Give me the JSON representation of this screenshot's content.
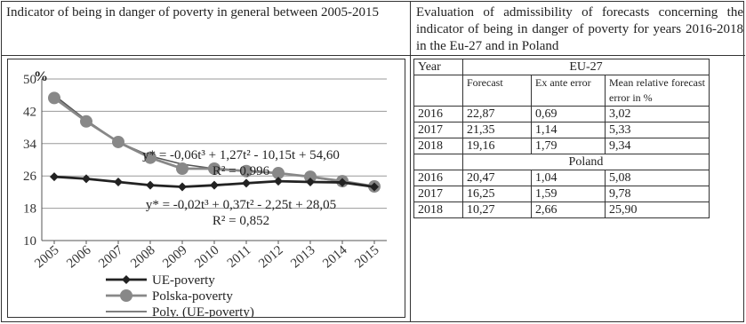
{
  "left_title": "Indicator of being in danger of poverty in general between 2005-2015",
  "right_title": "Evaluation of admissibility of forecasts concerning the indicator of being in danger of poverty for years 2016-2018 in the Eu-27 and in Poland",
  "chart_data": {
    "type": "line",
    "x": [
      "2005",
      "2006",
      "2007",
      "2008",
      "2009",
      "2010",
      "2011",
      "2012",
      "2013",
      "2014",
      "2015"
    ],
    "ylabel": "%",
    "ylim": [
      10,
      50
    ],
    "yticks": [
      "10",
      "18",
      "26",
      "34",
      "42",
      "50"
    ],
    "grid": true,
    "legend_position": "bottom",
    "series": [
      {
        "name": "UE-poverty",
        "color": "#222222",
        "marker": "diamond",
        "values": [
          25.8,
          25.3,
          24.5,
          23.7,
          23.3,
          23.7,
          24.2,
          24.7,
          24.5,
          24.4,
          23.3
        ]
      },
      {
        "name": "Polska-poverty",
        "color": "#888888",
        "marker": "circle",
        "values": [
          45.3,
          39.5,
          34.4,
          30.5,
          27.8,
          27.8,
          27.2,
          26.7,
          25.8,
          24.7,
          23.4
        ]
      },
      {
        "name": "Poly. (UE-poverty)",
        "color": "#555555",
        "marker": "none",
        "values": [
          46.0,
          39.8,
          34.4,
          30.9,
          28.9,
          27.8,
          27.2,
          26.7,
          25.7,
          24.6,
          23.2
        ]
      }
    ],
    "annotations": [
      {
        "text": "y* = -0,06t³ + 1,27t² - 10,15t + 54,60"
      },
      {
        "text": "R² = 0,996"
      },
      {
        "text": "y* = -0,02t³ + 0,37t² - 2,25t + 28,05"
      },
      {
        "text": "R² = 0,852"
      }
    ]
  },
  "table": {
    "year_header": "Year",
    "eu_header": "EU-27",
    "col_forecast": "Forecast",
    "col_ex_ante": "Ex ante error",
    "col_mean_rel": "Mean relative forecast error in %",
    "poland_header": "Poland",
    "eu_rows": [
      [
        "2016",
        "22,87",
        "0,69",
        "3,02"
      ],
      [
        "2017",
        "21,35",
        "1,14",
        "5,33"
      ],
      [
        "2018",
        "19,16",
        "1,79",
        "9,34"
      ]
    ],
    "poland_rows": [
      [
        "2016",
        "20,47",
        "1,04",
        "5,08"
      ],
      [
        "2017",
        "16,25",
        "1,59",
        "9,78"
      ],
      [
        "2018",
        "10,27",
        "2,66",
        "25,90"
      ]
    ]
  }
}
